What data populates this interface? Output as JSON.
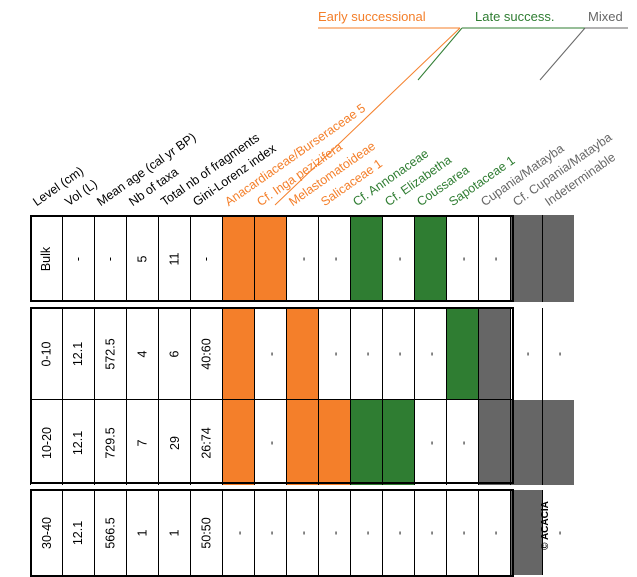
{
  "colors": {
    "early": "#f47f2a",
    "late": "#2f7d32",
    "mixed": "#666666",
    "lines": "#000000"
  },
  "groups": {
    "early": "Early successional",
    "late": "Late success.",
    "mixed": "Mixed"
  },
  "columns": [
    {
      "label": "Level (cm)",
      "group": "meta"
    },
    {
      "label": "Vol (L)",
      "group": "meta"
    },
    {
      "label": "Mean age (cal yr BP)",
      "group": "meta"
    },
    {
      "label": "Nb of taxa",
      "group": "meta"
    },
    {
      "label": "Total nb of fragments",
      "group": "meta"
    },
    {
      "label": "Gini-Lorenz index",
      "group": "meta"
    },
    {
      "label": "Anacardiaceae/Burseraceae 5",
      "group": "early"
    },
    {
      "label": "Cf. Inga pezizifera",
      "group": "early"
    },
    {
      "label": "Melastomatoideae",
      "group": "early"
    },
    {
      "label": "Salicaceae 1",
      "group": "early"
    },
    {
      "label": "Cf. Annonaceae",
      "group": "late"
    },
    {
      "label": "Cf. Elizabetha",
      "group": "late"
    },
    {
      "label": "Coussarea",
      "group": "late"
    },
    {
      "label": "Sapotaceae 1",
      "group": "late"
    },
    {
      "label": "Cupania/Matayba",
      "group": "mixed"
    },
    {
      "label": "Cf. Cupania/Matayba",
      "group": "mixed"
    },
    {
      "label": "Indeterminable",
      "group": "mixed"
    }
  ],
  "rows": [
    {
      "level": "Bulk",
      "vol": "-",
      "age": "-",
      "taxa": "5",
      "frags": "11",
      "gini": "-",
      "presence": [
        1,
        1,
        0,
        0,
        1,
        0,
        1,
        0,
        0,
        1,
        1
      ]
    },
    {
      "level": "0-10",
      "vol": "12.1",
      "age": "572.5",
      "taxa": "4",
      "frags": "6",
      "gini": "40:60",
      "presence": [
        1,
        0,
        1,
        0,
        0,
        0,
        0,
        1,
        1,
        0,
        0
      ]
    },
    {
      "level": "10-20",
      "vol": "12.1",
      "age": "729.5",
      "taxa": "7",
      "frags": "29",
      "gini": "26:74",
      "presence": [
        1,
        0,
        1,
        1,
        1,
        1,
        0,
        0,
        1,
        1,
        1
      ]
    },
    {
      "level": "30-40",
      "vol": "12.1",
      "age": "566.5",
      "taxa": "1",
      "frags": "1",
      "gini": "50:50",
      "presence": [
        0,
        0,
        0,
        0,
        0,
        0,
        0,
        0,
        0,
        1,
        0
      ]
    }
  ],
  "absent_mark": "-",
  "credit": "© ACACIA"
}
